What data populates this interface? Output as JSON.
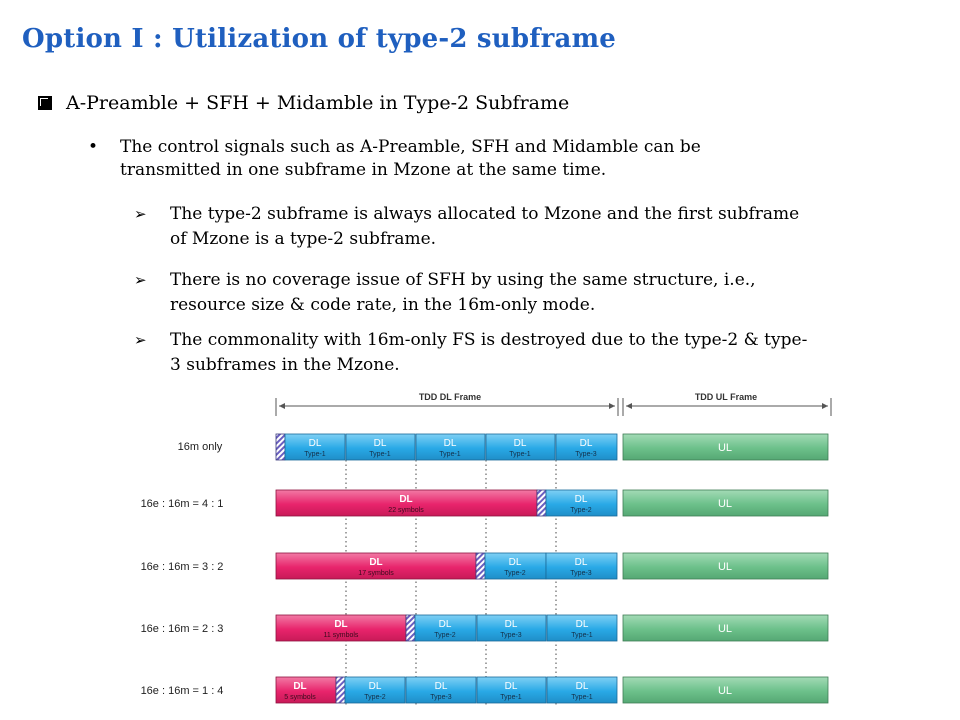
{
  "slide": {
    "title": "Option I : Utilization of type-2 subframe",
    "heading": "A-Preamble + SFH + Midamble in Type-2 Subframe",
    "bullet": {
      "line1": "The control signals such as A-Preamble, SFH and Midamble can be",
      "line2": "transmitted in one subframe in Mzone at the same time."
    },
    "subs": [
      {
        "line1": "The type-2 subframe is always allocated to Mzone and the first subframe",
        "line2": "of Mzone is a type-2 subframe."
      },
      {
        "line1": "There is no coverage issue of SFH by using the same structure, i.e.,",
        "line2": "resource size & code rate, in the 16m-only mode."
      },
      {
        "line1": "The commonality with 16m-only FS is destroyed due to the type-2 & type-",
        "line2": "3 subframes in the Mzone."
      }
    ]
  },
  "diagram": {
    "dl_frame_label": "TDD DL Frame",
    "ul_frame_label": "TDD UL Frame",
    "colors": {
      "blue": "#29a9e6",
      "pink": "#e8246c",
      "green": "#6cc08a",
      "hatch": "#6a5fc0"
    },
    "rows": [
      {
        "label": "16m  only",
        "ul": "UL",
        "cells": [
          {
            "kind": "hatch"
          },
          {
            "kind": "blue",
            "top": "DL",
            "bottom": "Type-1"
          },
          {
            "kind": "blue",
            "top": "DL",
            "bottom": "Type-1"
          },
          {
            "kind": "blue",
            "top": "DL",
            "bottom": "Type-1"
          },
          {
            "kind": "blue",
            "top": "DL",
            "bottom": "Type-1"
          },
          {
            "kind": "blue",
            "top": "DL",
            "bottom": "Type-3"
          }
        ]
      },
      {
        "label": "16e : 16m  = 4 : 1",
        "ul": "UL",
        "cells": [
          {
            "kind": "pink",
            "top": "DL",
            "bottom": "22 symbols"
          },
          {
            "kind": "hatch"
          },
          {
            "kind": "blue",
            "top": "DL",
            "bottom": "Type-2"
          }
        ]
      },
      {
        "label": "16e : 16m  = 3 : 2",
        "ul": "UL",
        "cells": [
          {
            "kind": "pink",
            "top": "DL",
            "bottom": "17 symbols"
          },
          {
            "kind": "hatch"
          },
          {
            "kind": "blue",
            "top": "DL",
            "bottom": "Type-2"
          },
          {
            "kind": "blue",
            "top": "DL",
            "bottom": "Type-3"
          }
        ]
      },
      {
        "label": "16e : 16m  = 2 : 3",
        "ul": "UL",
        "cells": [
          {
            "kind": "pink",
            "top": "DL",
            "bottom": "11 symbols"
          },
          {
            "kind": "hatch"
          },
          {
            "kind": "blue",
            "top": "DL",
            "bottom": "Type-2"
          },
          {
            "kind": "blue",
            "top": "DL",
            "bottom": "Type-3"
          },
          {
            "kind": "blue",
            "top": "DL",
            "bottom": "Type-1"
          }
        ]
      },
      {
        "label": "16e : 16m  = 1 : 4",
        "ul": "UL",
        "cells": [
          {
            "kind": "pink",
            "top": "DL",
            "bottom": "5 symbols"
          },
          {
            "kind": "hatch"
          },
          {
            "kind": "blue",
            "top": "DL",
            "bottom": "Type-2"
          },
          {
            "kind": "blue",
            "top": "DL",
            "bottom": "Type-3"
          },
          {
            "kind": "blue",
            "top": "DL",
            "bottom": "Type-1"
          },
          {
            "kind": "blue",
            "top": "DL",
            "bottom": "Type-1"
          }
        ]
      }
    ]
  }
}
